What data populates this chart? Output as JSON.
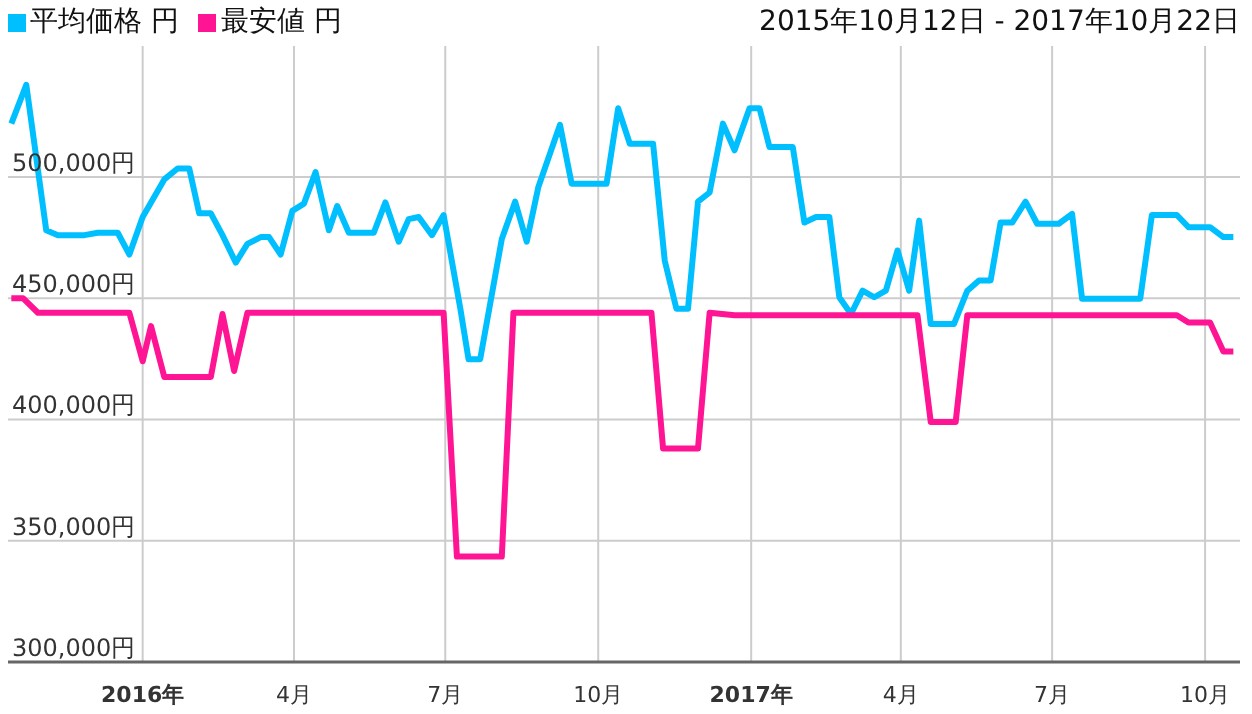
{
  "chart_data": {
    "type": "line",
    "subtitle": "2015年10月12日 - 2017年10月22日",
    "legend": "top left",
    "grid": true,
    "xlim": [
      "2015-10-12",
      "2017-10-22"
    ],
    "xticks": [
      {
        "value": "2016-01-01",
        "label": "2016年"
      },
      {
        "value": "2016-04-01",
        "label": "4月"
      },
      {
        "value": "2016-07-01",
        "label": "7月"
      },
      {
        "value": "2016-10-01",
        "label": "10月"
      },
      {
        "value": "2017-01-01",
        "label": "2017年"
      },
      {
        "value": "2017-04-01",
        "label": "4月"
      },
      {
        "value": "2017-07-01",
        "label": "7月"
      },
      {
        "value": "2017-10-01",
        "label": "10月"
      }
    ],
    "ylim": [
      300000,
      554000
    ],
    "yticks": [
      {
        "value": 300000,
        "label": "300,000円"
      },
      {
        "value": 350000,
        "label": "350,000円"
      },
      {
        "value": 400000,
        "label": "400,000円"
      },
      {
        "value": 450000,
        "label": "450,000円"
      },
      {
        "value": 500000,
        "label": "500,000円"
      }
    ],
    "series": [
      {
        "name": "平均価格 円",
        "color": "#00bfff",
        "x": [
          "2015-10-14",
          "2015-10-23",
          "2015-11-04",
          "2015-11-11",
          "2015-11-27",
          "2015-12-05",
          "2015-12-17",
          "2015-12-24",
          "2016-01-01",
          "2016-01-14",
          "2016-01-22",
          "2016-01-29",
          "2016-02-04",
          "2016-02-11",
          "2016-02-18",
          "2016-02-26",
          "2016-03-04",
          "2016-03-12",
          "2016-03-17",
          "2016-03-24",
          "2016-03-31",
          "2016-04-07",
          "2016-04-14",
          "2016-04-22",
          "2016-04-27",
          "2016-05-04",
          "2016-05-19",
          "2016-05-26",
          "2016-06-03",
          "2016-06-09",
          "2016-06-15",
          "2016-06-23",
          "2016-06-30",
          "2016-07-10",
          "2016-07-15",
          "2016-07-22",
          "2016-08-04",
          "2016-08-12",
          "2016-08-19",
          "2016-08-26",
          "2016-09-08",
          "2016-09-15",
          "2016-10-06",
          "2016-10-13",
          "2016-10-20",
          "2016-11-03",
          "2016-11-10",
          "2016-11-17",
          "2016-11-24",
          "2016-11-30",
          "2016-12-07",
          "2016-12-15",
          "2016-12-22",
          "2016-12-31",
          "2017-01-06",
          "2017-01-12",
          "2017-01-26",
          "2017-02-02",
          "2017-02-09",
          "2017-02-17",
          "2017-02-23",
          "2017-03-02",
          "2017-03-09",
          "2017-03-16",
          "2017-03-23",
          "2017-03-30",
          "2017-04-06",
          "2017-04-12",
          "2017-04-19",
          "2017-05-03",
          "2017-05-11",
          "2017-05-18",
          "2017-05-25",
          "2017-05-31",
          "2017-06-07",
          "2017-06-15",
          "2017-06-22",
          "2017-07-05",
          "2017-07-13",
          "2017-07-19",
          "2017-08-23",
          "2017-08-30",
          "2017-09-14",
          "2017-09-21",
          "2017-10-04",
          "2017-10-12",
          "2017-10-18"
        ],
        "values": [
          522000,
          538000,
          478000,
          476000,
          476000,
          477000,
          477000,
          468000,
          483500,
          499000,
          503500,
          503500,
          485000,
          485000,
          476000,
          464700,
          472400,
          475200,
          475200,
          468000,
          486000,
          489000,
          502000,
          478000,
          488000,
          477000,
          477000,
          489500,
          473300,
          482600,
          483500,
          476000,
          484300,
          446000,
          424800,
          424800,
          474400,
          489800,
          473300,
          495900,
          521500,
          497200,
          497200,
          528300,
          513700,
          513700,
          465500,
          445700,
          445700,
          489800,
          493600,
          522000,
          511000,
          528300,
          528300,
          512400,
          512400,
          481200,
          483500,
          483500,
          450400,
          443500,
          453100,
          450400,
          453100,
          469700,
          453100,
          482000,
          439400,
          439400,
          453100,
          457300,
          457300,
          481200,
          481200,
          489800,
          480700,
          480700,
          484800,
          449800,
          449800,
          484300,
          484300,
          479300,
          479300,
          475200,
          475200
        ]
      },
      {
        "name": "最安値 円",
        "color": "#ff1493",
        "x": [
          "2015-10-14",
          "2015-10-21",
          "2015-10-30",
          "2015-12-24",
          "2016-01-01",
          "2016-01-06",
          "2016-01-14",
          "2016-02-11",
          "2016-02-18",
          "2016-02-25",
          "2016-03-04",
          "2016-06-30",
          "2016-07-08",
          "2016-08-04",
          "2016-08-11",
          "2016-11-02",
          "2016-11-09",
          "2016-11-30",
          "2016-12-07",
          "2016-12-22",
          "2017-04-11",
          "2017-04-19",
          "2017-05-04",
          "2017-05-11",
          "2017-09-14",
          "2017-09-21",
          "2017-10-04",
          "2017-10-12",
          "2017-10-18"
        ],
        "values": [
          450000,
          450000,
          444000,
          444000,
          424000,
          438500,
          417500,
          417500,
          443500,
          420000,
          444000,
          444000,
          343500,
          343500,
          444000,
          444000,
          388000,
          388000,
          444000,
          443000,
          443000,
          399000,
          399000,
          443000,
          443000,
          440000,
          440000,
          428000,
          428000
        ]
      }
    ]
  }
}
